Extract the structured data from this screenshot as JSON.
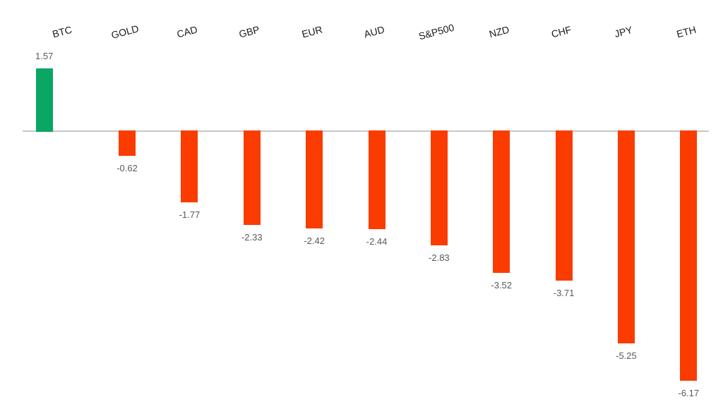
{
  "chart_data": {
    "type": "bar",
    "categories": [
      "BTC",
      "GOLD",
      "CAD",
      "GBP",
      "EUR",
      "AUD",
      "S&P500",
      "NZD",
      "CHF",
      "JPY",
      "ETH"
    ],
    "values": [
      1.57,
      -0.62,
      -1.77,
      -2.33,
      -2.42,
      -2.44,
      -2.83,
      -3.52,
      -3.71,
      -5.25,
      -6.17
    ],
    "data_labels": [
      "1.57",
      "-0.62",
      "-1.77",
      "-2.33",
      "-2.42",
      "-2.44",
      "-2.83",
      "-3.52",
      "-3.71",
      "-5.25",
      "-6.17"
    ],
    "title": "",
    "xlabel": "",
    "ylabel": "",
    "ylim": [
      -7,
      2
    ],
    "grid": false,
    "legend": null,
    "axes_ticks_visible": false,
    "category_label_position": "top",
    "data_label_position": "outside-end",
    "colors": {
      "positive_bar": "#0aa664",
      "negative_bar": "#fa3c00",
      "axis_line": "#c8c8c8",
      "value_label": "#595959",
      "category_label": "#1a1a1a",
      "background": "#ffffff"
    }
  }
}
